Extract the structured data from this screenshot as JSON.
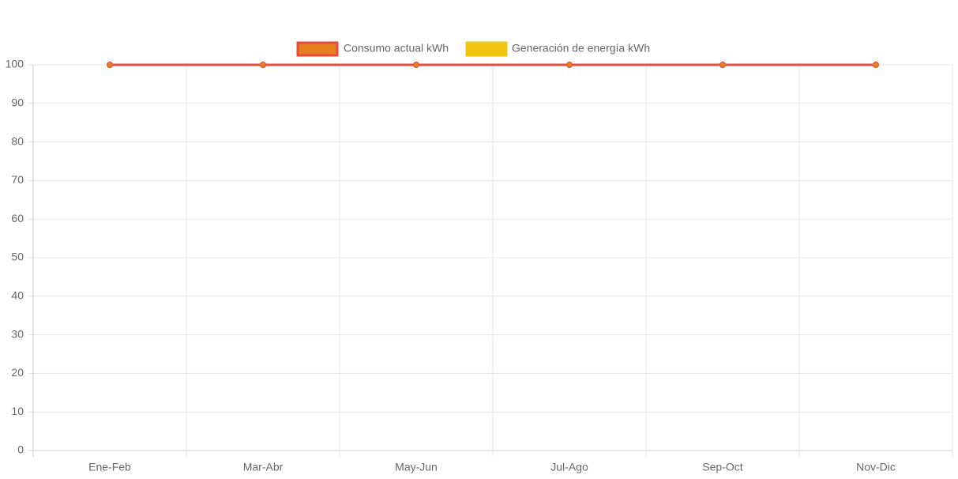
{
  "chart_data": {
    "type": "line",
    "categories": [
      "Ene-Feb",
      "Mar-Abr",
      "May-Jun",
      "Jul-Ago",
      "Sep-Oct",
      "Nov-Dic"
    ],
    "series": [
      {
        "name": "Consumo actual kWh",
        "color": "#e67e22",
        "border_color": "#e74c3c",
        "values": [
          100,
          100,
          100,
          100,
          100,
          100
        ]
      },
      {
        "name": "Generación de energía kWh",
        "color": "#f1c40f",
        "border_color": "#f1c40f",
        "values": [
          100,
          100,
          100,
          100,
          100,
          100
        ]
      }
    ],
    "ylim": [
      0,
      100
    ],
    "yticks": [
      0,
      10,
      20,
      30,
      40,
      50,
      60,
      70,
      80,
      90,
      100
    ],
    "grid": true,
    "legend": "top"
  }
}
